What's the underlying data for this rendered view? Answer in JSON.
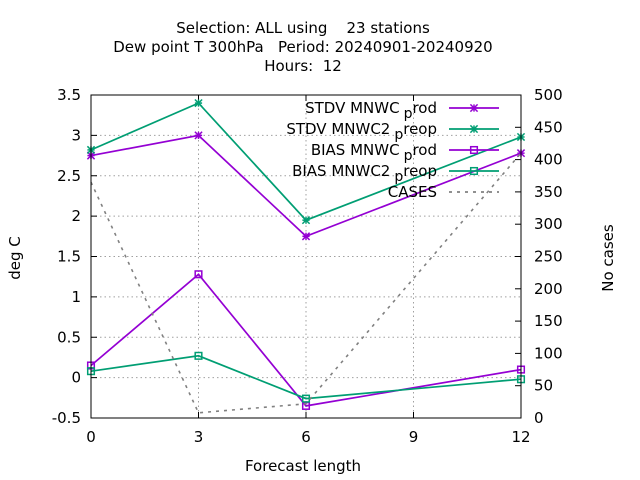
{
  "chart_data": {
    "type": "line",
    "title_lines": [
      "Selection: ALL using    23 stations",
      "Dew point T 300hPa   Period: 20240901-20240920",
      "Hours:  12"
    ],
    "xlabel": "Forecast length",
    "ylabel": "deg C",
    "y2label": "No cases",
    "x": [
      0,
      3,
      6,
      9,
      12
    ],
    "xlim": [
      0,
      12
    ],
    "ylim": [
      -0.5,
      3.5
    ],
    "y2lim": [
      0,
      500
    ],
    "xticks": [
      "0",
      "3",
      "6",
      "9",
      "12"
    ],
    "yticks": [
      "-0.5",
      "0",
      "0.5",
      "1",
      "1.5",
      "2",
      "2.5",
      "3",
      "3.5"
    ],
    "y2ticks": [
      "0",
      "50",
      "100",
      "150",
      "200",
      "250",
      "300",
      "350",
      "400",
      "450",
      "500"
    ],
    "grid": true,
    "legend_position": "top-right",
    "series": [
      {
        "name": "STDV MNWC",
        "subscript": "p",
        "suffix": "rod",
        "color": "#9400d3",
        "marker": "star",
        "axis": "y",
        "x": [
          0,
          3,
          6,
          12
        ],
        "values": [
          2.75,
          3.0,
          1.75,
          2.78
        ]
      },
      {
        "name": "STDV MNWC2",
        "subscript": "p",
        "suffix": "reop",
        "color": "#009e73",
        "marker": "star",
        "axis": "y",
        "x": [
          0,
          3,
          6,
          12
        ],
        "values": [
          2.82,
          3.4,
          1.95,
          2.98
        ]
      },
      {
        "name": "BIAS MNWC",
        "subscript": "p",
        "suffix": "rod",
        "color": "#9400d3",
        "marker": "square",
        "axis": "y",
        "x": [
          0,
          3,
          6,
          12
        ],
        "values": [
          0.15,
          1.28,
          -0.35,
          0.1
        ]
      },
      {
        "name": "BIAS MNWC2",
        "subscript": "p",
        "suffix": "reop",
        "color": "#009e73",
        "marker": "square",
        "axis": "y",
        "x": [
          0,
          3,
          6,
          12
        ],
        "values": [
          0.08,
          0.27,
          -0.26,
          -0.02
        ]
      },
      {
        "name": "CASES",
        "subscript": "",
        "suffix": "",
        "color": "#808080",
        "marker": "none",
        "dashed": true,
        "axis": "y2",
        "x": [
          0,
          3,
          6,
          12
        ],
        "values": [
          365,
          8,
          22,
          410
        ]
      }
    ]
  }
}
